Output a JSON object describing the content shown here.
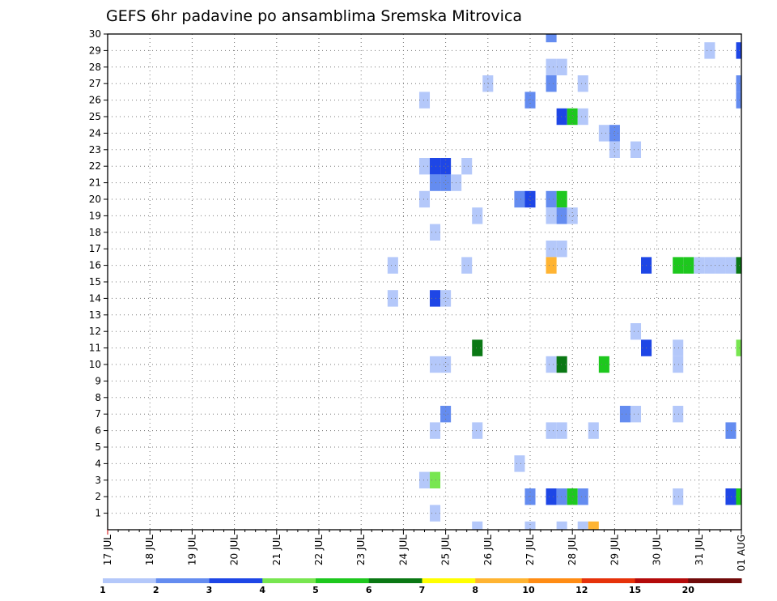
{
  "chart_data": {
    "type": "heatmap",
    "title": "GEFS 6hr padavine po ansamblima Sremska Mitrovica",
    "x_tick_labels": [
      "17 JUL",
      "18 JUL",
      "19 JUL",
      "20 JUL",
      "21 JUL",
      "22 JUL",
      "23 JUL",
      "24 JUL",
      "25 JUL",
      "26 JUL",
      "27 JUL",
      "28 JUL",
      "29 JUL",
      "30 JUL",
      "31 JUL",
      "01 AUG"
    ],
    "y_tick_labels": [
      "1",
      "2",
      "3",
      "4",
      "5",
      "6",
      "7",
      "8",
      "9",
      "10",
      "11",
      "12",
      "13",
      "14",
      "15",
      "16",
      "17",
      "18",
      "19",
      "20",
      "21",
      "22",
      "23",
      "24",
      "25",
      "26",
      "27",
      "28",
      "29",
      "30"
    ],
    "x_unit": "6-hour step from 17 JUL 00Z",
    "x_range": [
      0,
      60
    ],
    "y_range": [
      0,
      30
    ],
    "grid": "dotted",
    "colorbar": {
      "labels": [
        "1",
        "2",
        "3",
        "4",
        "5",
        "6",
        "7",
        "8",
        "10",
        "12",
        "15",
        "20"
      ],
      "colors": [
        "#b4c8fa",
        "#648cf0",
        "#1e46e6",
        "#78e650",
        "#1ec81e",
        "#0a7814",
        "#ffff00",
        "#ffb432",
        "#ff8c14",
        "#e6320a",
        "#b40a0a",
        "#700a0a"
      ]
    },
    "cells": [
      [
        42,
        30,
        2
      ],
      [
        57,
        29,
        1
      ],
      [
        60,
        29,
        3
      ],
      [
        42,
        28,
        1
      ],
      [
        43,
        28,
        1
      ],
      [
        36,
        27,
        1
      ],
      [
        42,
        27,
        2
      ],
      [
        45,
        27,
        1
      ],
      [
        60,
        27,
        2
      ],
      [
        30,
        26,
        1
      ],
      [
        40,
        26,
        2
      ],
      [
        60,
        26,
        2
      ],
      [
        43,
        25,
        3
      ],
      [
        44,
        25,
        5
      ],
      [
        45,
        25,
        1
      ],
      [
        47,
        24,
        1
      ],
      [
        48,
        24,
        2
      ],
      [
        48,
        23,
        1
      ],
      [
        50,
        23,
        1
      ],
      [
        30,
        22,
        1
      ],
      [
        31,
        22,
        3
      ],
      [
        32,
        22,
        3
      ],
      [
        34,
        22,
        1
      ],
      [
        31,
        21,
        2
      ],
      [
        32,
        21,
        2
      ],
      [
        33,
        21,
        1
      ],
      [
        30,
        20,
        1
      ],
      [
        39,
        20,
        2
      ],
      [
        40,
        20,
        3
      ],
      [
        42,
        20,
        2
      ],
      [
        43,
        20,
        5
      ],
      [
        35,
        19,
        1
      ],
      [
        42,
        19,
        1
      ],
      [
        43,
        19,
        2
      ],
      [
        44,
        19,
        1
      ],
      [
        31,
        18,
        1
      ],
      [
        42,
        17,
        1
      ],
      [
        43,
        17,
        1
      ],
      [
        27,
        16,
        1
      ],
      [
        34,
        16,
        1
      ],
      [
        42,
        16,
        8
      ],
      [
        51,
        16,
        3
      ],
      [
        54,
        16,
        5
      ],
      [
        55,
        16,
        5
      ],
      [
        56,
        16,
        1
      ],
      [
        57,
        16,
        1
      ],
      [
        58,
        16,
        1
      ],
      [
        59,
        16,
        1
      ],
      [
        60,
        16,
        6
      ],
      [
        27,
        14,
        1
      ],
      [
        31,
        14,
        3
      ],
      [
        32,
        14,
        1
      ],
      [
        50,
        12,
        1
      ],
      [
        35,
        11,
        6
      ],
      [
        51,
        11,
        3
      ],
      [
        54,
        11,
        1
      ],
      [
        60,
        11,
        4
      ],
      [
        31,
        10,
        1
      ],
      [
        32,
        10,
        1
      ],
      [
        42,
        10,
        1
      ],
      [
        43,
        10,
        6
      ],
      [
        47,
        10,
        5
      ],
      [
        54,
        10,
        1
      ],
      [
        32,
        7,
        2
      ],
      [
        49,
        7,
        2
      ],
      [
        50,
        7,
        1
      ],
      [
        54,
        7,
        1
      ],
      [
        31,
        6,
        1
      ],
      [
        35,
        6,
        1
      ],
      [
        42,
        6,
        1
      ],
      [
        43,
        6,
        1
      ],
      [
        46,
        6,
        1
      ],
      [
        59,
        6,
        2
      ],
      [
        39,
        4,
        1
      ],
      [
        30,
        3,
        1
      ],
      [
        31,
        3,
        4
      ],
      [
        40,
        2,
        2
      ],
      [
        42,
        2,
        3
      ],
      [
        43,
        2,
        2
      ],
      [
        44,
        2,
        5
      ],
      [
        45,
        2,
        2
      ],
      [
        54,
        2,
        1
      ],
      [
        59,
        2,
        3
      ],
      [
        60,
        2,
        5
      ],
      [
        31,
        1,
        1
      ],
      [
        35,
        0,
        1
      ],
      [
        40,
        0,
        1
      ],
      [
        43,
        0,
        1
      ],
      [
        45,
        0,
        1
      ],
      [
        46,
        0,
        8
      ]
    ]
  }
}
